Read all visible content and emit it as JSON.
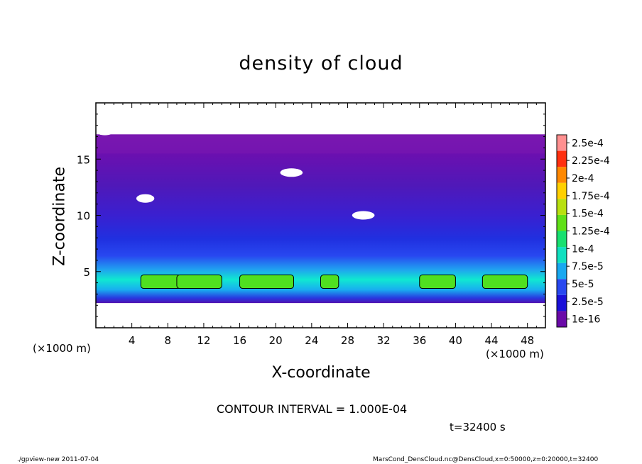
{
  "chart_data": {
    "type": "heatmap",
    "title": "density of cloud",
    "xlabel": "X-coordinate",
    "ylabel": "Z-coordinate",
    "x_unit_left": "(×1000 m)",
    "x_unit_right": "(×1000 m)",
    "xlim": [
      0,
      50
    ],
    "ylim": [
      0,
      20
    ],
    "x_ticks": [
      4,
      8,
      12,
      16,
      20,
      24,
      28,
      32,
      36,
      40,
      44,
      48
    ],
    "y_ticks": [
      5,
      10,
      15
    ],
    "colorbar": {
      "levels": [
        "1e-16",
        "2.5e-5",
        "5e-5",
        "7.5e-5",
        "1e-4",
        "1.25e-4",
        "1.5e-4",
        "1.75e-4",
        "2e-4",
        "2.25e-4",
        "2.5e-4"
      ],
      "colors": [
        "#6a0aa8",
        "#1a10d8",
        "#2848f0",
        "#18a8f0",
        "#10e0c0",
        "#18e070",
        "#60e018",
        "#b8e010",
        "#ffd000",
        "#ff8800",
        "#ff3010",
        "#ff9090"
      ]
    },
    "contour_interval": "CONTOUR INTERVAL = 1.000E-04",
    "time_label": "t=32400 s"
  },
  "footer": {
    "left": "./gpview-new  2011-07-04",
    "right": "MarsCond_DensCloud.nc@DensCloud,x=0:50000,z=0:20000,t=32400"
  }
}
